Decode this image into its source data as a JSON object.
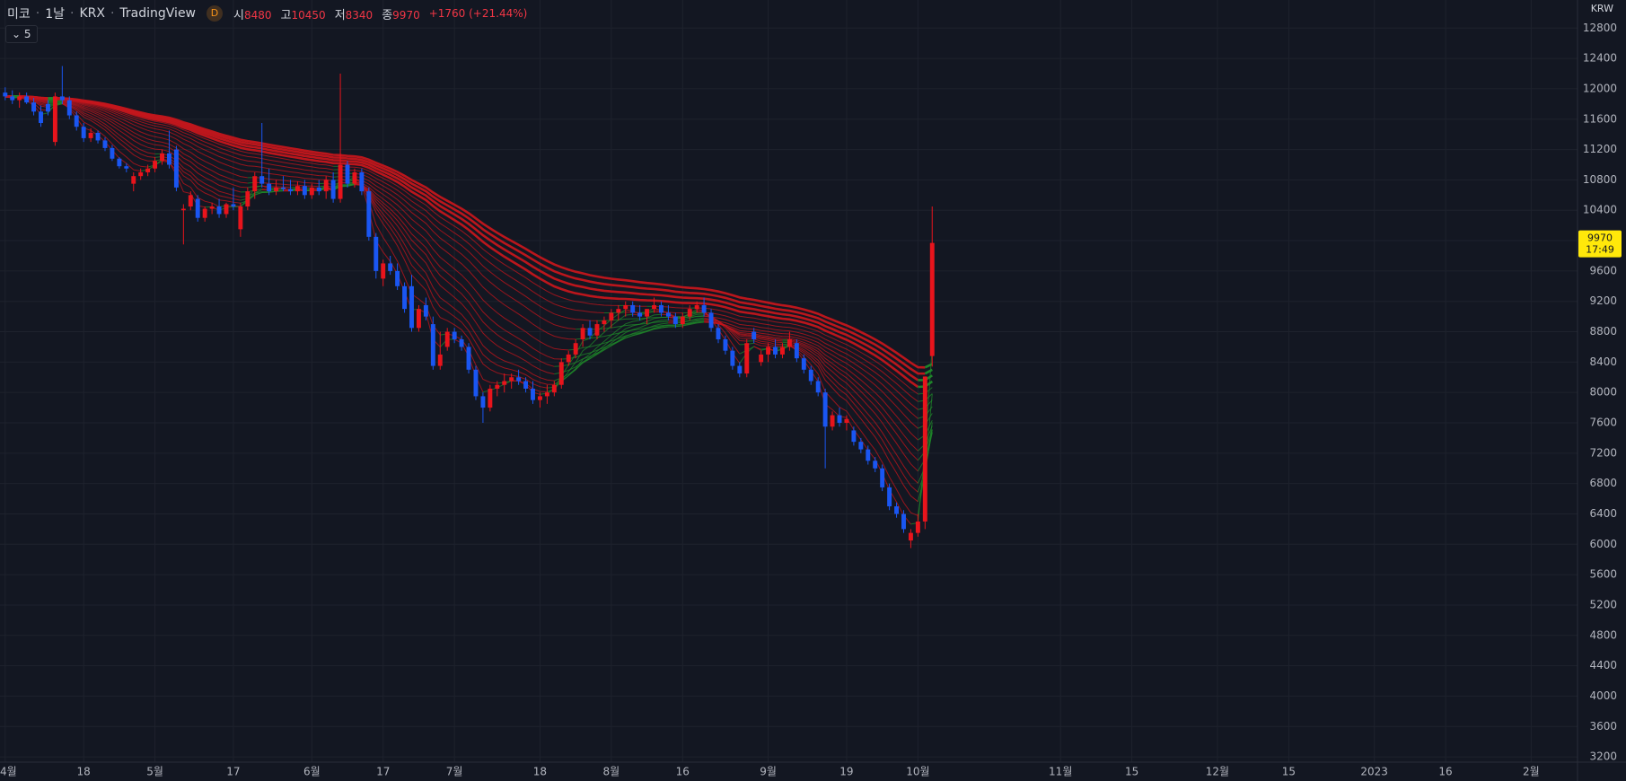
{
  "header": {
    "symbol": "미코",
    "interval": "1날",
    "exchange": "KRX",
    "source": "TradingView",
    "badge": "D",
    "open_label": "시",
    "high_label": "고",
    "low_label": "저",
    "close_label": "종",
    "change": "+1760 (+21.44%)",
    "indicator_count": "5"
  },
  "chart_data": {
    "type": "candlestick",
    "currency": "KRW",
    "countdown": "17:49",
    "up_color": "#e8141c",
    "down_color": "#1a56f2",
    "grid": true,
    "open": [
      11950,
      11900,
      11850,
      11900,
      11820,
      11700,
      11800,
      11300,
      11900,
      11850,
      11650,
      11500,
      11350,
      11420,
      11320,
      11220,
      11080,
      10980,
      10750,
      10850,
      10900,
      10950,
      11050,
      11150,
      11200,
      10400,
      10450,
      10550,
      10300,
      10420,
      10450,
      10350,
      10480,
      10150,
      10450,
      10650,
      10850,
      10750,
      10650,
      10700,
      10680,
      10650,
      10720,
      10600,
      10700,
      10650,
      10800,
      10550,
      11000,
      10750,
      10900,
      10650,
      10050,
      9500,
      9700,
      9600,
      9400,
      9400,
      8850,
      9150,
      8900,
      8350,
      8600,
      8800,
      8700,
      8600,
      8300,
      7950,
      7800,
      8050,
      8100,
      8150,
      8200,
      8150,
      8050,
      7900,
      7950,
      8000,
      8100,
      8400,
      8500,
      8700,
      8850,
      8750,
      8900,
      8950,
      9050,
      9100,
      9150,
      9050,
      9000,
      9100,
      9150,
      9050,
      9000,
      8900,
      9000,
      9100,
      9150,
      9050,
      8850,
      8700,
      8550,
      8350,
      8250,
      8800,
      8400,
      8500,
      8600,
      8500,
      8600,
      8650,
      8450,
      8300,
      8150,
      8000,
      7550,
      7700,
      7600,
      7500,
      7350,
      7250,
      7100,
      7000,
      6750,
      6500,
      6400,
      6050,
      6150,
      6300,
      8480
    ],
    "high": [
      12020,
      11980,
      11950,
      11950,
      11880,
      11780,
      11850,
      11950,
      12300,
      11900,
      11700,
      11550,
      11480,
      11450,
      11360,
      11260,
      11100,
      11020,
      10900,
      10950,
      11000,
      11100,
      11200,
      11450,
      11250,
      10480,
      10650,
      10600,
      10450,
      10500,
      10550,
      10500,
      10700,
      10500,
      10700,
      10900,
      11550,
      10950,
      10800,
      10850,
      10800,
      10780,
      10800,
      10750,
      10800,
      10850,
      10900,
      12200,
      11050,
      10950,
      10950,
      10700,
      10100,
      9750,
      9800,
      9700,
      9450,
      9550,
      9150,
      9250,
      9000,
      8800,
      8850,
      8850,
      8750,
      8650,
      8350,
      8000,
      8100,
      8150,
      8250,
      8250,
      8300,
      8200,
      8150,
      8000,
      8100,
      8150,
      8450,
      8550,
      8700,
      8900,
      8950,
      8950,
      9000,
      9100,
      9150,
      9200,
      9200,
      9150,
      9100,
      9250,
      9200,
      9150,
      9050,
      9050,
      9150,
      9200,
      9250,
      9100,
      8900,
      8750,
      8600,
      8400,
      8700,
      8850,
      8550,
      8650,
      8700,
      8650,
      8800,
      8700,
      8500,
      8350,
      8200,
      8050,
      7750,
      7800,
      7700,
      7550,
      7400,
      7300,
      7150,
      7050,
      6800,
      6550,
      6450,
      6200,
      6400,
      8210,
      10450
    ],
    "low": [
      11850,
      11800,
      11750,
      11800,
      11650,
      11500,
      11650,
      11250,
      11800,
      11600,
      11450,
      11300,
      11300,
      11280,
      11180,
      11050,
      10950,
      10900,
      10650,
      10800,
      10850,
      10900,
      11000,
      10950,
      10650,
      9950,
      10400,
      10250,
      10250,
      10350,
      10300,
      10300,
      10400,
      10050,
      10400,
      10550,
      10700,
      10600,
      10600,
      10650,
      10600,
      10600,
      10550,
      10550,
      10600,
      10550,
      10500,
      10500,
      10700,
      10700,
      10600,
      10000,
      9500,
      9400,
      9550,
      9350,
      9050,
      8800,
      8800,
      8950,
      8300,
      8300,
      8550,
      8650,
      8550,
      8250,
      7900,
      7600,
      7750,
      7950,
      8000,
      8050,
      8100,
      8000,
      7850,
      7800,
      7850,
      7950,
      8050,
      8350,
      8450,
      8600,
      8700,
      8700,
      8800,
      8850,
      8950,
      9000,
      9000,
      8950,
      8900,
      9050,
      9000,
      8950,
      8850,
      8850,
      8950,
      9050,
      9000,
      8800,
      8650,
      8500,
      8300,
      8200,
      8200,
      8650,
      8350,
      8400,
      8450,
      8450,
      8550,
      8400,
      8250,
      8100,
      7950,
      7000,
      7500,
      7550,
      7500,
      7300,
      7200,
      7050,
      6950,
      6700,
      6450,
      6350,
      6150,
      5950,
      6100,
      6200,
      8340
    ],
    "close": [
      11900,
      11850,
      11900,
      11820,
      11700,
      11550,
      11700,
      11900,
      11850,
      11650,
      11500,
      11350,
      11420,
      11320,
      11220,
      11080,
      10980,
      10950,
      10850,
      10900,
      10950,
      11050,
      11150,
      11000,
      10700,
      10420,
      10600,
      10300,
      10420,
      10450,
      10350,
      10480,
      10450,
      10450,
      10650,
      10850,
      10750,
      10650,
      10700,
      10680,
      10650,
      10720,
      10600,
      10700,
      10650,
      10800,
      10550,
      11000,
      10750,
      10900,
      10650,
      10050,
      9600,
      9700,
      9600,
      9400,
      9100,
      8850,
      9100,
      9000,
      8350,
      8500,
      8800,
      8700,
      8600,
      8300,
      7950,
      7800,
      8050,
      8100,
      8150,
      8200,
      8150,
      8050,
      7900,
      7950,
      8000,
      8100,
      8400,
      8500,
      8650,
      8850,
      8750,
      8900,
      8950,
      9050,
      9100,
      9150,
      9050,
      9000,
      9100,
      9150,
      9050,
      9000,
      8900,
      9000,
      9100,
      9150,
      9050,
      8850,
      8700,
      8550,
      8350,
      8250,
      8650,
      8700,
      8500,
      8600,
      8500,
      8600,
      8700,
      8450,
      8300,
      8150,
      8000,
      7550,
      7700,
      7600,
      7650,
      7350,
      7250,
      7100,
      7000,
      6750,
      6500,
      6400,
      6200,
      6150,
      6300,
      8210,
      9970
    ],
    "ylim": [
      3130,
      13170
    ],
    "yticks": [
      3200,
      3600,
      4000,
      4400,
      4800,
      5200,
      5600,
      6000,
      6400,
      6800,
      7200,
      7600,
      8000,
      8400,
      8800,
      9200,
      9600,
      10000,
      10400,
      10800,
      11200,
      11600,
      12000,
      12400,
      12800
    ],
    "xlim": [
      -0.73,
      220.5
    ],
    "xticks": [
      {
        "value": 0,
        "label": "4월"
      },
      {
        "value": 11,
        "label": "18"
      },
      {
        "value": 21,
        "label": "5월"
      },
      {
        "value": 32,
        "label": "17"
      },
      {
        "value": 43,
        "label": "6월"
      },
      {
        "value": 53,
        "label": "17"
      },
      {
        "value": 63,
        "label": "7월"
      },
      {
        "value": 75,
        "label": "18"
      },
      {
        "value": 85,
        "label": "8월"
      },
      {
        "value": 95,
        "label": "16"
      },
      {
        "value": 107,
        "label": "9월"
      },
      {
        "value": 118,
        "label": "19"
      },
      {
        "value": 128,
        "label": "10월"
      },
      {
        "value": 148,
        "label": "11월"
      },
      {
        "value": 158,
        "label": "15"
      },
      {
        "value": 170,
        "label": "12월"
      },
      {
        "value": 180,
        "label": "15"
      },
      {
        "value": 192,
        "label": "2023"
      },
      {
        "value": 202,
        "label": "16"
      },
      {
        "value": 214,
        "label": "2월"
      }
    ],
    "ribbon": {
      "periods": [
        3,
        5,
        8,
        10,
        12,
        15,
        18,
        21,
        25,
        30,
        35,
        40,
        45,
        50,
        55,
        60,
        65,
        70
      ],
      "rise_color": "#1f8a2a",
      "fall_color": "#c4161c"
    }
  }
}
